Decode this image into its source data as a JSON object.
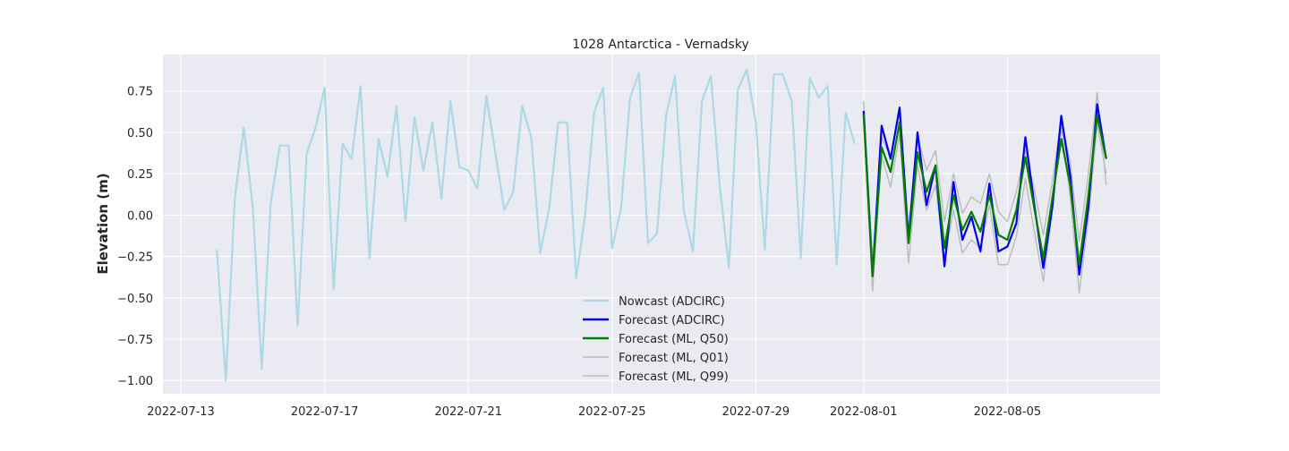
{
  "chart_data": {
    "type": "line",
    "title": "1028 Antarctica - Vernadsky",
    "xlabel": "",
    "ylabel": "Elevation (m)",
    "xlim": [
      "2022-07-12T12:00",
      "2022-08-09T06:00"
    ],
    "ylim": [
      -1.08,
      0.97
    ],
    "x_ticks": [
      "2022-07-13",
      "2022-07-17",
      "2022-07-21",
      "2022-07-25",
      "2022-07-29",
      "2022-08-01",
      "2022-08-05"
    ],
    "y_ticks": [
      -1.0,
      -0.75,
      -0.5,
      -0.25,
      0.0,
      0.25,
      0.5,
      0.75
    ],
    "y_tick_labels": [
      "−1.00",
      "−0.75",
      "−0.50",
      "−0.25",
      "0.00",
      "0.25",
      "0.50",
      "0.75"
    ],
    "grid": true,
    "background": "#eaeaf2",
    "legend_placement": "lower center",
    "series": [
      {
        "name": "Nowcast (ADCIRC)",
        "color": "#add8e6",
        "width": 2.2,
        "points": [
          [
            "2022-07-14T00:00",
            -0.21
          ],
          [
            "2022-07-14T06:00",
            -1.0
          ],
          [
            "2022-07-14T12:00",
            0.1
          ],
          [
            "2022-07-14T18:00",
            0.53
          ],
          [
            "2022-07-15T00:00",
            0.05
          ],
          [
            "2022-07-15T06:00",
            -0.93
          ],
          [
            "2022-07-15T12:00",
            0.07
          ],
          [
            "2022-07-15T18:00",
            0.42
          ],
          [
            "2022-07-16T00:00",
            0.42
          ],
          [
            "2022-07-16T06:00",
            -0.67
          ],
          [
            "2022-07-16T12:00",
            0.37
          ],
          [
            "2022-07-16T18:00",
            0.53
          ],
          [
            "2022-07-17T00:00",
            0.77
          ],
          [
            "2022-07-17T06:00",
            -0.45
          ],
          [
            "2022-07-17T12:00",
            0.43
          ],
          [
            "2022-07-17T18:00",
            0.34
          ],
          [
            "2022-07-18T00:00",
            0.78
          ],
          [
            "2022-07-18T06:00",
            -0.26
          ],
          [
            "2022-07-18T12:00",
            0.46
          ],
          [
            "2022-07-18T18:00",
            0.23
          ],
          [
            "2022-07-19T00:00",
            0.66
          ],
          [
            "2022-07-19T06:00",
            -0.04
          ],
          [
            "2022-07-19T12:00",
            0.59
          ],
          [
            "2022-07-19T18:00",
            0.27
          ],
          [
            "2022-07-20T00:00",
            0.56
          ],
          [
            "2022-07-20T06:00",
            0.1
          ],
          [
            "2022-07-20T12:00",
            0.69
          ],
          [
            "2022-07-20T18:00",
            0.29
          ],
          [
            "2022-07-21T00:00",
            0.27
          ],
          [
            "2022-07-21T06:00",
            0.16
          ],
          [
            "2022-07-21T12:00",
            0.72
          ],
          [
            "2022-07-21T18:00",
            0.38
          ],
          [
            "2022-07-22T00:00",
            0.03
          ],
          [
            "2022-07-22T06:00",
            0.14
          ],
          [
            "2022-07-22T12:00",
            0.66
          ],
          [
            "2022-07-22T18:00",
            0.47
          ],
          [
            "2022-07-23T00:00",
            -0.23
          ],
          [
            "2022-07-23T06:00",
            0.04
          ],
          [
            "2022-07-23T12:00",
            0.56
          ],
          [
            "2022-07-23T18:00",
            0.56
          ],
          [
            "2022-07-24T00:00",
            -0.38
          ],
          [
            "2022-07-24T06:00",
            0.0
          ],
          [
            "2022-07-24T12:00",
            0.62
          ],
          [
            "2022-07-24T18:00",
            0.77
          ],
          [
            "2022-07-25T00:00",
            -0.2
          ],
          [
            "2022-07-25T06:00",
            0.04
          ],
          [
            "2022-07-25T12:00",
            0.71
          ],
          [
            "2022-07-25T18:00",
            0.86
          ],
          [
            "2022-07-26T00:00",
            -0.17
          ],
          [
            "2022-07-26T06:00",
            -0.11
          ],
          [
            "2022-07-26T12:00",
            0.6
          ],
          [
            "2022-07-26T18:00",
            0.84
          ],
          [
            "2022-07-27T00:00",
            0.02
          ],
          [
            "2022-07-27T06:00",
            -0.22
          ],
          [
            "2022-07-27T12:00",
            0.69
          ],
          [
            "2022-07-27T18:00",
            0.84
          ],
          [
            "2022-07-28T00:00",
            0.17
          ],
          [
            "2022-07-28T06:00",
            -0.32
          ],
          [
            "2022-07-28T12:00",
            0.76
          ],
          [
            "2022-07-28T18:00",
            0.88
          ],
          [
            "2022-07-29T00:00",
            0.56
          ],
          [
            "2022-07-29T06:00",
            -0.21
          ],
          [
            "2022-07-29T12:00",
            0.85
          ],
          [
            "2022-07-29T18:00",
            0.85
          ],
          [
            "2022-07-30T00:00",
            0.69
          ],
          [
            "2022-07-30T06:00",
            -0.26
          ],
          [
            "2022-07-30T12:00",
            0.83
          ],
          [
            "2022-07-30T18:00",
            0.71
          ],
          [
            "2022-07-31T00:00",
            0.78
          ],
          [
            "2022-07-31T06:00",
            -0.3
          ],
          [
            "2022-07-31T12:00",
            0.62
          ],
          [
            "2022-07-31T18:00",
            0.43
          ]
        ]
      },
      {
        "name": "Forecast (ML, Q01)",
        "color": "#bbbbbb",
        "width": 1.4,
        "points": [
          [
            "2022-08-01T00:00",
            0.57
          ],
          [
            "2022-08-01T06:00",
            -0.46
          ],
          [
            "2022-08-01T12:00",
            0.36
          ],
          [
            "2022-08-01T18:00",
            0.17
          ],
          [
            "2022-08-02T00:00",
            0.49
          ],
          [
            "2022-08-02T06:00",
            -0.29
          ],
          [
            "2022-08-02T12:00",
            0.3
          ],
          [
            "2022-08-02T18:00",
            0.03
          ],
          [
            "2022-08-03T00:00",
            0.18
          ],
          [
            "2022-08-03T06:00",
            -0.26
          ],
          [
            "2022-08-03T12:00",
            0.03
          ],
          [
            "2022-08-03T18:00",
            -0.23
          ],
          [
            "2022-08-04T00:00",
            -0.15
          ],
          [
            "2022-08-04T06:00",
            -0.2
          ],
          [
            "2022-08-04T12:00",
            0.06
          ],
          [
            "2022-08-04T18:00",
            -0.3
          ],
          [
            "2022-08-05T00:00",
            -0.3
          ],
          [
            "2022-08-05T06:00",
            -0.13
          ],
          [
            "2022-08-05T12:00",
            0.22
          ],
          [
            "2022-08-05T18:00",
            -0.1
          ],
          [
            "2022-08-06T00:00",
            -0.4
          ],
          [
            "2022-08-06T06:00",
            0.02
          ],
          [
            "2022-08-06T12:00",
            0.53
          ],
          [
            "2022-08-06T18:00",
            0.11
          ],
          [
            "2022-08-07T00:00",
            -0.47
          ],
          [
            "2022-08-07T06:00",
            -0.03
          ],
          [
            "2022-08-07T12:00",
            0.55
          ],
          [
            "2022-08-07T18:00",
            0.25
          ]
        ]
      },
      {
        "name": "Forecast (ML, Q99)",
        "color": "#bbbbbb",
        "width": 1.4,
        "points": [
          [
            "2022-08-01T00:00",
            0.69
          ],
          [
            "2022-08-01T06:00",
            -0.28
          ],
          [
            "2022-08-01T12:00",
            0.47
          ],
          [
            "2022-08-01T18:00",
            0.35
          ],
          [
            "2022-08-02T00:00",
            0.62
          ],
          [
            "2022-08-02T06:00",
            -0.09
          ],
          [
            "2022-08-02T12:00",
            0.48
          ],
          [
            "2022-08-02T18:00",
            0.27
          ],
          [
            "2022-08-03T00:00",
            0.39
          ],
          [
            "2022-08-03T06:00",
            -0.04
          ],
          [
            "2022-08-03T12:00",
            0.25
          ],
          [
            "2022-08-03T18:00",
            0.01
          ],
          [
            "2022-08-04T00:00",
            0.11
          ],
          [
            "2022-08-04T06:00",
            0.07
          ],
          [
            "2022-08-04T12:00",
            0.25
          ],
          [
            "2022-08-04T18:00",
            0.02
          ],
          [
            "2022-08-05T00:00",
            -0.04
          ],
          [
            "2022-08-05T06:00",
            0.14
          ],
          [
            "2022-08-05T12:00",
            0.39
          ],
          [
            "2022-08-05T18:00",
            0.15
          ],
          [
            "2022-08-06T00:00",
            -0.12
          ],
          [
            "2022-08-06T06:00",
            0.2
          ],
          [
            "2022-08-06T12:00",
            0.58
          ],
          [
            "2022-08-06T18:00",
            0.32
          ],
          [
            "2022-08-07T00:00",
            -0.16
          ],
          [
            "2022-08-07T06:00",
            0.24
          ],
          [
            "2022-08-07T12:00",
            0.74
          ],
          [
            "2022-08-07T18:00",
            0.18
          ]
        ]
      },
      {
        "name": "Forecast (ADCIRC)",
        "color": "#0000ee",
        "width": 2.2,
        "points": [
          [
            "2022-08-01T00:00",
            0.63
          ],
          [
            "2022-08-01T06:00",
            -0.37
          ],
          [
            "2022-08-01T12:00",
            0.54
          ],
          [
            "2022-08-01T18:00",
            0.34
          ],
          [
            "2022-08-02T00:00",
            0.65
          ],
          [
            "2022-08-02T06:00",
            -0.15
          ],
          [
            "2022-08-02T12:00",
            0.5
          ],
          [
            "2022-08-02T18:00",
            0.06
          ],
          [
            "2022-08-03T00:00",
            0.3
          ],
          [
            "2022-08-03T06:00",
            -0.31
          ],
          [
            "2022-08-03T12:00",
            0.2
          ],
          [
            "2022-08-03T18:00",
            -0.15
          ],
          [
            "2022-08-04T00:00",
            -0.01
          ],
          [
            "2022-08-04T06:00",
            -0.22
          ],
          [
            "2022-08-04T12:00",
            0.19
          ],
          [
            "2022-08-04T18:00",
            -0.22
          ],
          [
            "2022-08-05T00:00",
            -0.19
          ],
          [
            "2022-08-05T06:00",
            -0.05
          ],
          [
            "2022-08-05T12:00",
            0.47
          ],
          [
            "2022-08-05T18:00",
            0.06
          ],
          [
            "2022-08-06T00:00",
            -0.32
          ],
          [
            "2022-08-06T06:00",
            0.05
          ],
          [
            "2022-08-06T12:00",
            0.6
          ],
          [
            "2022-08-06T18:00",
            0.24
          ],
          [
            "2022-08-07T00:00",
            -0.36
          ],
          [
            "2022-08-07T06:00",
            0.04
          ],
          [
            "2022-08-07T12:00",
            0.67
          ],
          [
            "2022-08-07T18:00",
            0.34
          ]
        ]
      },
      {
        "name": "Forecast (ML, Q50)",
        "color": "#008000",
        "width": 2.2,
        "points": [
          [
            "2022-08-01T00:00",
            0.61
          ],
          [
            "2022-08-01T06:00",
            -0.37
          ],
          [
            "2022-08-01T12:00",
            0.41
          ],
          [
            "2022-08-01T18:00",
            0.26
          ],
          [
            "2022-08-02T00:00",
            0.56
          ],
          [
            "2022-08-02T06:00",
            -0.17
          ],
          [
            "2022-08-02T12:00",
            0.38
          ],
          [
            "2022-08-02T18:00",
            0.14
          ],
          [
            "2022-08-03T00:00",
            0.3
          ],
          [
            "2022-08-03T06:00",
            -0.2
          ],
          [
            "2022-08-03T12:00",
            0.12
          ],
          [
            "2022-08-03T18:00",
            -0.09
          ],
          [
            "2022-08-04T00:00",
            0.02
          ],
          [
            "2022-08-04T06:00",
            -0.1
          ],
          [
            "2022-08-04T12:00",
            0.12
          ],
          [
            "2022-08-04T18:00",
            -0.12
          ],
          [
            "2022-08-05T00:00",
            -0.15
          ],
          [
            "2022-08-05T06:00",
            0.03
          ],
          [
            "2022-08-05T12:00",
            0.35
          ],
          [
            "2022-08-05T18:00",
            0.04
          ],
          [
            "2022-08-06T00:00",
            -0.26
          ],
          [
            "2022-08-06T06:00",
            0.1
          ],
          [
            "2022-08-06T12:00",
            0.46
          ],
          [
            "2022-08-06T18:00",
            0.18
          ],
          [
            "2022-08-07T00:00",
            -0.3
          ],
          [
            "2022-08-07T06:00",
            0.11
          ],
          [
            "2022-08-07T12:00",
            0.6
          ],
          [
            "2022-08-07T18:00",
            0.34
          ]
        ]
      }
    ],
    "legend": [
      {
        "label": "Nowcast (ADCIRC)",
        "color": "#add8e6"
      },
      {
        "label": "Forecast (ADCIRC)",
        "color": "#0000ee"
      },
      {
        "label": "Forecast (ML, Q50)",
        "color": "#008000"
      },
      {
        "label": "Forecast (ML, Q01)",
        "color": "#bbbbbb"
      },
      {
        "label": "Forecast (ML, Q99)",
        "color": "#bbbbbb"
      }
    ]
  }
}
